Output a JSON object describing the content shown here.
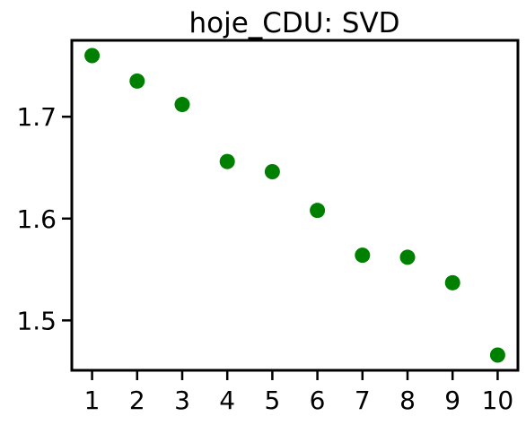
{
  "chart_data": {
    "type": "scatter",
    "title": "hoje_CDU: SVD",
    "xlabel": "",
    "ylabel": "",
    "x": [
      1,
      2,
      3,
      4,
      5,
      6,
      7,
      8,
      9,
      10
    ],
    "y": [
      1.76,
      1.735,
      1.712,
      1.656,
      1.646,
      1.608,
      1.564,
      1.562,
      1.537,
      1.466
    ],
    "xticks": [
      1,
      2,
      3,
      4,
      5,
      6,
      7,
      8,
      9,
      10
    ],
    "xtick_labels": [
      "1",
      "2",
      "3",
      "4",
      "5",
      "6",
      "7",
      "8",
      "9",
      "10"
    ],
    "yticks": [
      1.5,
      1.6,
      1.7
    ],
    "ytick_labels": [
      "1.5",
      "1.6",
      "1.7"
    ],
    "xlim": [
      0.55,
      10.45
    ],
    "ylim": [
      1.451,
      1.775
    ],
    "grid": false,
    "legend": "none",
    "marker_color": "#008000"
  }
}
